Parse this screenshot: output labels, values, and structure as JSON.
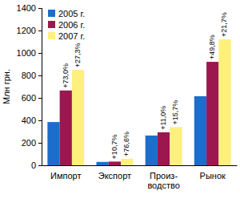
{
  "chart_data": {
    "type": "bar",
    "ylabel": "Млн грн.",
    "categories": [
      "Импорт",
      "Экспорт",
      "Произ-\nводство",
      "Рынок"
    ],
    "series": [
      {
        "name": "2005 г.",
        "color": "#1c6dcc",
        "values": [
          385,
          30,
          265,
          615
        ]
      },
      {
        "name": "2006 г.",
        "color": "#9c1750",
        "values": [
          666,
          33,
          294,
          921
        ],
        "annotations": [
          "+73,0%",
          "+10,7%",
          "+11,0%",
          "+49,8%"
        ]
      },
      {
        "name": "2007 г.",
        "color": "#fdf07c",
        "values": [
          848,
          58,
          340,
          1121
        ],
        "annotations": [
          "+27,3%",
          "+76,6%",
          "+15,7%",
          "+21,7%"
        ]
      }
    ],
    "ylim": [
      0,
      1400
    ],
    "yticks": [
      0,
      200,
      400,
      600,
      800,
      1000,
      1200,
      1400
    ],
    "legend": "upper left",
    "grid": false
  }
}
